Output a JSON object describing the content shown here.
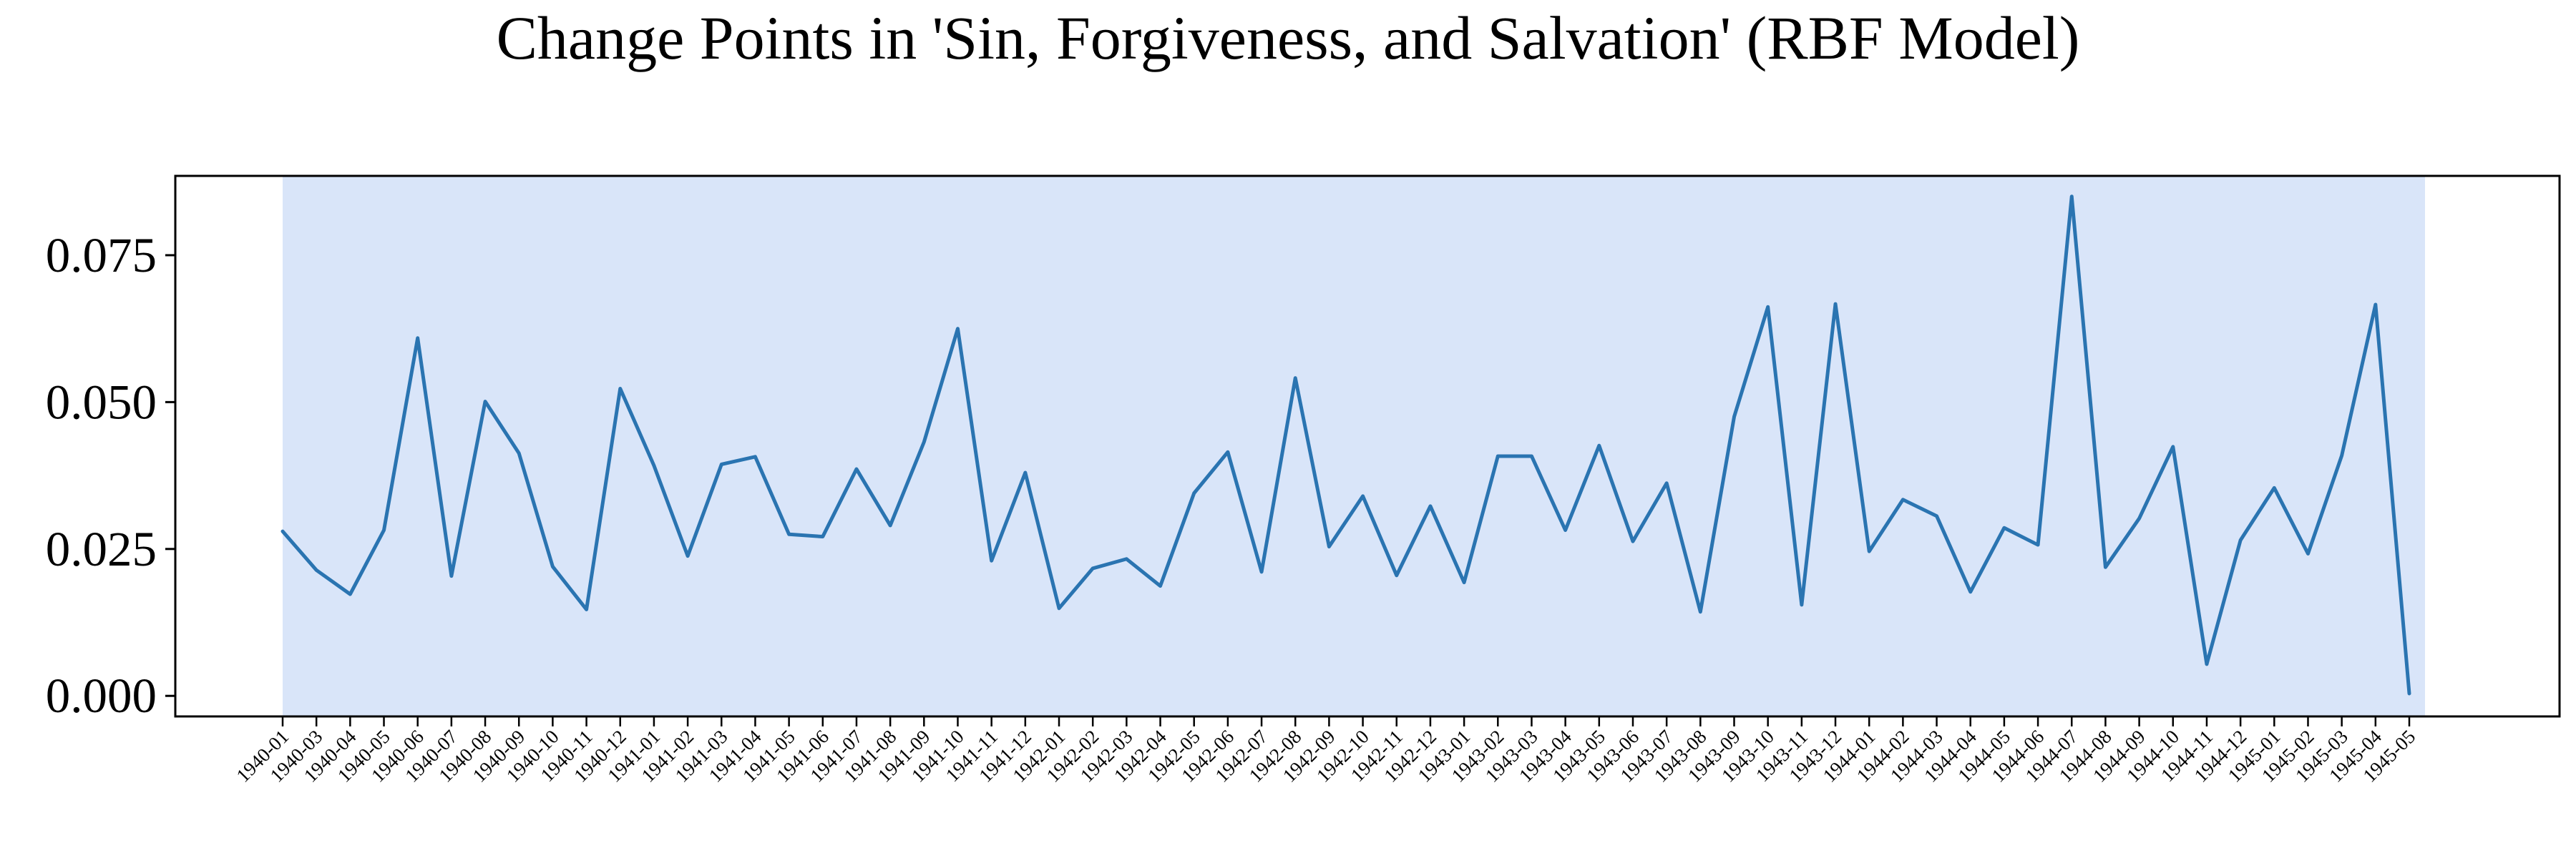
{
  "chart_data": {
    "type": "line",
    "title": "Change Points in 'Sin, Forgiveness, and Salvation' (RBF Model)",
    "xlabel": "",
    "ylabel": "",
    "ylim": [
      -0.0035,
      0.0885
    ],
    "yticks": [
      "0.000",
      "0.025",
      "0.050",
      "0.075"
    ],
    "ytick_values": [
      0.0,
      0.025,
      0.05,
      0.075
    ],
    "grid": false,
    "colors": {
      "line": "#2a74b1",
      "shaded_region": "#d9e5f9",
      "frame": "#000000"
    },
    "shaded_regions": [
      {
        "start": "1940-01",
        "end": "1945-05"
      }
    ],
    "categories": [
      "1940-01",
      "1940-03",
      "1940-04",
      "1940-05",
      "1940-06",
      "1940-07",
      "1940-08",
      "1940-09",
      "1940-10",
      "1940-11",
      "1940-12",
      "1941-01",
      "1941-02",
      "1941-03",
      "1941-04",
      "1941-05",
      "1941-06",
      "1941-07",
      "1941-08",
      "1941-09",
      "1941-10",
      "1941-11",
      "1941-12",
      "1942-01",
      "1942-02",
      "1942-03",
      "1942-04",
      "1942-05",
      "1942-06",
      "1942-07",
      "1942-08",
      "1942-09",
      "1942-10",
      "1942-11",
      "1942-12",
      "1943-01",
      "1943-02",
      "1943-03",
      "1943-04",
      "1943-05",
      "1943-06",
      "1943-07",
      "1943-08",
      "1943-09",
      "1943-10",
      "1943-11",
      "1943-12",
      "1944-01",
      "1944-02",
      "1944-03",
      "1944-04",
      "1944-05",
      "1944-06",
      "1944-07",
      "1944-08",
      "1944-09",
      "1944-10",
      "1944-11",
      "1944-12",
      "1945-01",
      "1945-02",
      "1945-03",
      "1945-04",
      "1945-05"
    ],
    "series": [
      {
        "values": [
          0.028,
          0.0214,
          0.0173,
          0.0282,
          0.0609,
          0.0204,
          0.0501,
          0.0413,
          0.022,
          0.0147,
          0.0523,
          0.0392,
          0.0238,
          0.0394,
          0.0407,
          0.0275,
          0.0271,
          0.0386,
          0.029,
          0.0432,
          0.0625,
          0.023,
          0.038,
          0.0149,
          0.0217,
          0.0233,
          0.0187,
          0.0345,
          0.0415,
          0.0211,
          0.0541,
          0.0254,
          0.034,
          0.0205,
          0.0323,
          0.0193,
          0.0408,
          0.0408,
          0.0282,
          0.0426,
          0.0263,
          0.0362,
          0.0143,
          0.0475,
          0.0662,
          0.0155,
          0.0667,
          0.0246,
          0.0334,
          0.0306,
          0.0177,
          0.0286,
          0.0257,
          0.085,
          0.0219,
          0.0302,
          0.0424,
          0.0054,
          0.0265,
          0.0354,
          0.0242,
          0.0409,
          0.0666,
          0.0004
        ]
      }
    ]
  }
}
